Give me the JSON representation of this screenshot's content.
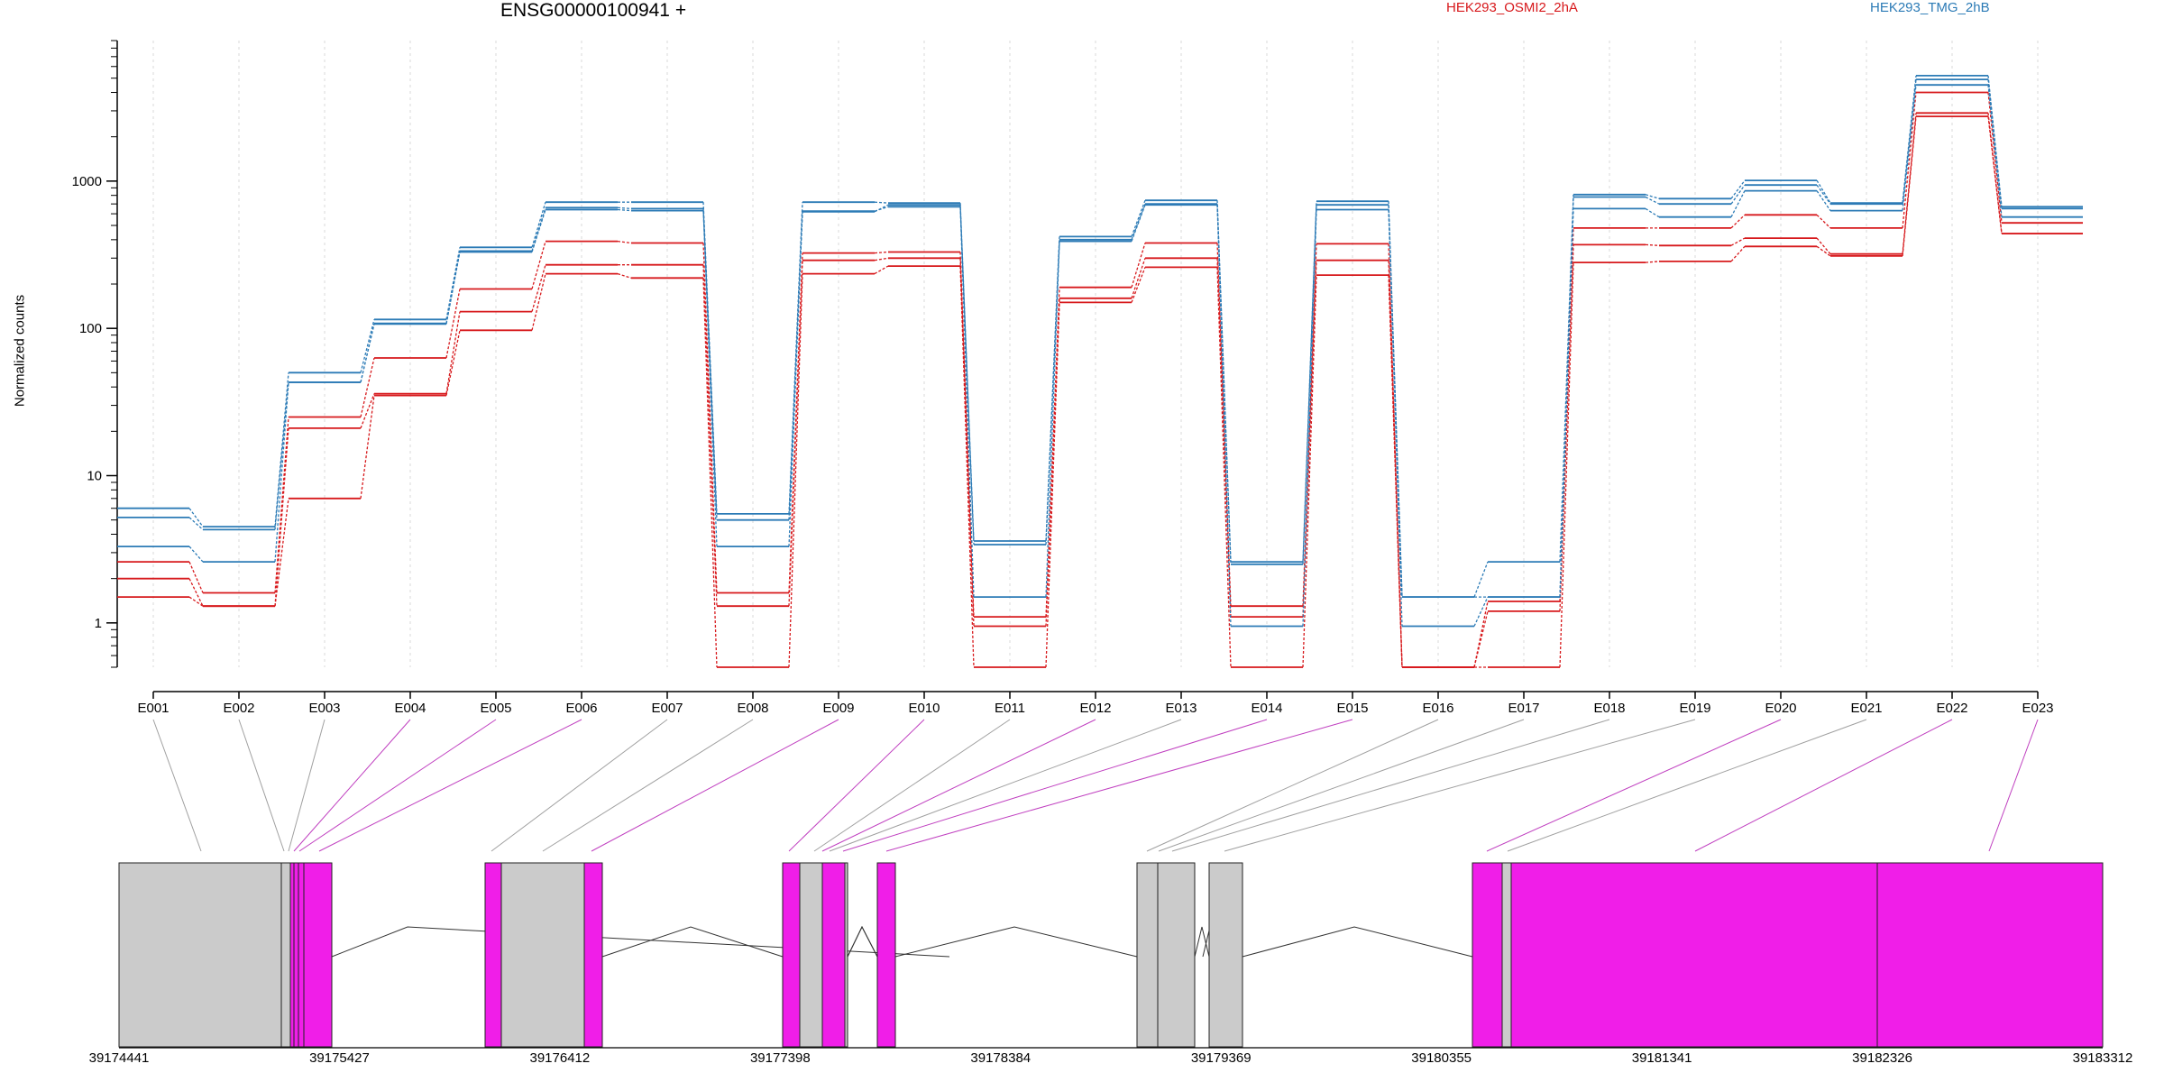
{
  "chart_data": {
    "type": "line",
    "title": "ENSG00000100941 +",
    "ylabel": "Normalized counts",
    "y_scale": "log",
    "ylim": [
      0.5,
      9000
    ],
    "yticks": [
      "1",
      "10",
      "100",
      "1000"
    ],
    "categories": [
      "E001",
      "E002",
      "E003",
      "E004",
      "E005",
      "E006",
      "E007",
      "E008",
      "E009",
      "E010",
      "E011",
      "E012",
      "E013",
      "E014",
      "E015",
      "E016",
      "E017",
      "E018",
      "E019",
      "E020",
      "E021",
      "E022",
      "E023"
    ],
    "legend": [
      "HEK293_OSMI2_2hA",
      "HEK293_TMG_2hB"
    ],
    "series": [
      {
        "group": "HEK293_OSMI2_2hA",
        "values": [
          2.6,
          1.6,
          25,
          63,
          185,
          390,
          380,
          1.6,
          325,
          330,
          1.1,
          190,
          380,
          1.3,
          375,
          0.5,
          1.4,
          480,
          480,
          590,
          480,
          4000,
          520
        ]
      },
      {
        "group": "HEK293_OSMI2_2hA",
        "values": [
          2.0,
          1.3,
          21,
          36,
          130,
          270,
          270,
          1.3,
          290,
          300,
          0.95,
          160,
          300,
          1.1,
          290,
          0.5,
          1.2,
          370,
          365,
          410,
          320,
          2900,
          440
        ]
      },
      {
        "group": "HEK293_OSMI2_2hA",
        "values": [
          1.5,
          1.3,
          7,
          35,
          97,
          235,
          220,
          0.5,
          235,
          265,
          0.5,
          150,
          260,
          0.5,
          230,
          0.5,
          0.5,
          280,
          285,
          360,
          310,
          2750,
          440
        ]
      },
      {
        "group": "HEK293_TMG_2hB",
        "values": [
          6.0,
          4.5,
          50,
          115,
          355,
          720,
          720,
          5.5,
          720,
          710,
          3.6,
          420,
          740,
          2.6,
          730,
          1.5,
          2.6,
          810,
          760,
          1010,
          710,
          5200,
          670
        ]
      },
      {
        "group": "HEK293_TMG_2hB",
        "values": [
          5.2,
          4.3,
          43,
          108,
          335,
          660,
          650,
          5.0,
          620,
          690,
          3.4,
          400,
          700,
          2.5,
          690,
          1.5,
          1.5,
          780,
          700,
          940,
          700,
          4900,
          650
        ]
      },
      {
        "group": "HEK293_TMG_2hB",
        "values": [
          3.3,
          2.6,
          43,
          107,
          330,
          640,
          630,
          3.3,
          625,
          670,
          1.5,
          390,
          690,
          0.95,
          640,
          0.95,
          1.5,
          650,
          570,
          860,
          630,
          4500,
          570
        ]
      }
    ],
    "exon_labels": [
      "39174441",
      "39175427",
      "39176412",
      "39177398",
      "39178384",
      "39179369",
      "39180355",
      "39181341",
      "39182326",
      "39183312"
    ]
  },
  "colors": {
    "osmi": "#d7191c",
    "tmg": "#2c7bb6",
    "exon_diff": "#f01ee8",
    "exon_plain": "#cbcbcb",
    "connector_diff": "#c040c0",
    "connector_plain": "#a0a0a0"
  },
  "gene_model": {
    "exon_highlight": [
      "plain",
      "plain",
      "plain",
      "diff",
      "diff",
      "diff",
      "plain",
      "plain",
      "diff",
      "diff",
      "plain",
      "diff",
      "plain",
      "diff",
      "diff",
      "plain",
      "plain",
      "plain",
      "plain",
      "diff",
      "plain",
      "diff",
      "diff"
    ]
  }
}
